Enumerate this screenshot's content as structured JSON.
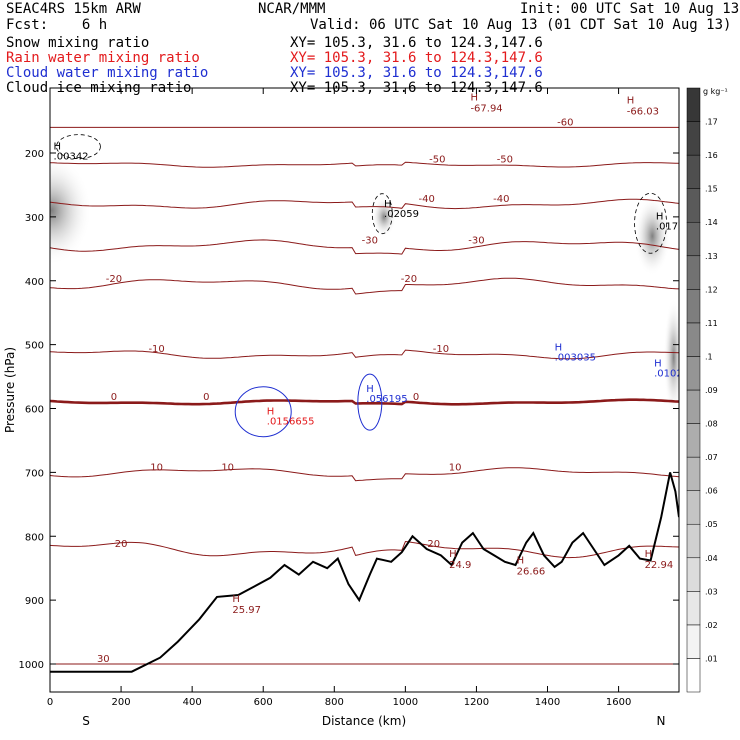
{
  "header": {
    "model": "SEAC4RS 15km ARW",
    "org": "NCAR/MMM",
    "init": "Init: 00 UTC Sat 10 Aug 13",
    "fcst": "Fcst:    6 h",
    "valid": "Valid: 06 UTC Sat 10 Aug 13 (01 CDT Sat 10 Aug 13)",
    "fields": [
      {
        "label": "Snow mixing ratio",
        "xy": "XY= 105.3, 31.6 to 124.3,147.6",
        "color": "#000000"
      },
      {
        "label": "Rain water mixing ratio",
        "xy": "XY= 105.3, 31.6 to 124.3,147.6",
        "color": "#e31a1c"
      },
      {
        "label": "Cloud water mixing ratio",
        "xy": "XY= 105.3, 31.6 to 124.3,147.6",
        "color": "#1f2fd1"
      },
      {
        "label": "Cloud ice mixing ratio",
        "xy": "XY= 105.3, 31.6 to 124.3,147.6",
        "color": "#000000"
      }
    ]
  },
  "chart_data": {
    "type": "contour",
    "xlabel": "Distance (km)",
    "ylabel": "Pressure (hPa)",
    "xlim": [
      0,
      1770
    ],
    "ylim": [
      1050,
      100
    ],
    "x_ticks": [
      0,
      200,
      400,
      600,
      800,
      1000,
      1200,
      1400,
      1600
    ],
    "y_ticks": [
      200,
      300,
      400,
      500,
      600,
      700,
      800,
      900,
      1000
    ],
    "endpoint_labels": {
      "left": "S",
      "right": "N"
    },
    "colorbar": {
      "unit": "g kg⁻¹",
      "ticks": [
        ".01",
        ".02",
        ".03",
        ".04",
        ".05",
        ".06",
        ".07",
        ".08",
        ".09",
        ".1",
        ".11",
        ".12",
        ".13",
        ".14",
        ".15",
        ".16",
        ".17"
      ]
    },
    "colors": {
      "isotherm": "#8b1a1a",
      "cloud_water": "#1f2fd1",
      "terrain": "#000000"
    },
    "isotherms": [
      {
        "label": "-60",
        "y0": 160,
        "amp": 0,
        "labels": [
          {
            "x": 1450,
            "text": "-60"
          }
        ]
      },
      {
        "label": "-50",
        "y0": 218,
        "amp": 6,
        "labels": [
          {
            "x": 1280,
            "text": "-50"
          },
          {
            "x": 1090,
            "text": "-50"
          }
        ]
      },
      {
        "label": "-40",
        "y0": 280,
        "amp": 10,
        "labels": [
          {
            "x": 1270,
            "text": "-40"
          },
          {
            "x": 1060,
            "text": "-40"
          }
        ]
      },
      {
        "label": "-30",
        "y0": 345,
        "amp": 12,
        "labels": [
          {
            "x": 1200,
            "text": "-30"
          },
          {
            "x": 900,
            "text": "-30"
          }
        ]
      },
      {
        "label": "-20",
        "y0": 405,
        "amp": 12,
        "labels": [
          {
            "x": 180,
            "text": "-20"
          },
          {
            "x": 1010,
            "text": "-20"
          }
        ]
      },
      {
        "label": "-10",
        "y0": 515,
        "amp": 10,
        "labels": [
          {
            "x": 300,
            "text": "-10"
          },
          {
            "x": 1100,
            "text": "-10"
          }
        ]
      },
      {
        "label": "0",
        "y0": 590,
        "amp": 5,
        "labels": [
          {
            "x": 180,
            "text": "0"
          },
          {
            "x": 440,
            "text": "0"
          },
          {
            "x": 1030,
            "text": "0"
          }
        ]
      },
      {
        "label": "10",
        "y0": 700,
        "amp": 10,
        "labels": [
          {
            "x": 300,
            "text": "10"
          },
          {
            "x": 500,
            "text": "10"
          },
          {
            "x": 1140,
            "text": "10"
          }
        ]
      },
      {
        "label": "20",
        "y0": 820,
        "amp": 18,
        "labels": [
          {
            "x": 200,
            "text": "20"
          },
          {
            "x": 1080,
            "text": "20"
          }
        ]
      },
      {
        "label": "30",
        "y0": 1000,
        "amp": 0,
        "labels": [
          {
            "x": 150,
            "text": "30"
          }
        ]
      }
    ],
    "temperature_extrema": [
      {
        "x": 1200,
        "p": 135,
        "text": "-67.94"
      },
      {
        "x": 1640,
        "p": 140,
        "text": "-66.03"
      },
      {
        "x": 530,
        "p": 920,
        "text": "25.97"
      },
      {
        "x": 1140,
        "p": 850,
        "text": "24.9"
      },
      {
        "x": 1330,
        "p": 860,
        "text": "26.66"
      },
      {
        "x": 1690,
        "p": 850,
        "text": "22.94"
      }
    ],
    "mixing_ratio_maxima": [
      {
        "x": 10,
        "p": 210,
        "text": ".00342",
        "color": "#000000"
      },
      {
        "x": 940,
        "p": 300,
        "text": ".02059",
        "color": "#000000"
      },
      {
        "x": 1705,
        "p": 320,
        "text": ".017",
        "color": "#000000"
      },
      {
        "x": 1420,
        "p": 525,
        "text": ".003035",
        "color": "#1f2fd1"
      },
      {
        "x": 1700,
        "p": 550,
        "text": ".0102",
        "color": "#1f2fd1"
      },
      {
        "x": 890,
        "p": 590,
        "text": ".056195",
        "color": "#1f2fd1"
      },
      {
        "x": 610,
        "p": 625,
        "text": ".0156655",
        "color": "#e31a1c"
      }
    ],
    "terrain": {
      "x": [
        0,
        230,
        310,
        360,
        420,
        470,
        530,
        570,
        620,
        660,
        700,
        740,
        780,
        810,
        840,
        870,
        900,
        920,
        960,
        990,
        1020,
        1060,
        1100,
        1130,
        1160,
        1190,
        1220,
        1250,
        1280,
        1310,
        1340,
        1360,
        1390,
        1420,
        1440,
        1470,
        1500,
        1530,
        1560,
        1600,
        1630,
        1660,
        1690,
        1720,
        1745,
        1760,
        1770
      ],
      "p": [
        1012,
        1012,
        990,
        965,
        930,
        895,
        892,
        880,
        865,
        845,
        860,
        840,
        850,
        835,
        875,
        900,
        860,
        835,
        840,
        825,
        800,
        820,
        830,
        845,
        810,
        795,
        820,
        830,
        840,
        845,
        810,
        795,
        830,
        848,
        840,
        810,
        795,
        820,
        845,
        830,
        815,
        835,
        838,
        770,
        700,
        730,
        770
      ]
    }
  }
}
